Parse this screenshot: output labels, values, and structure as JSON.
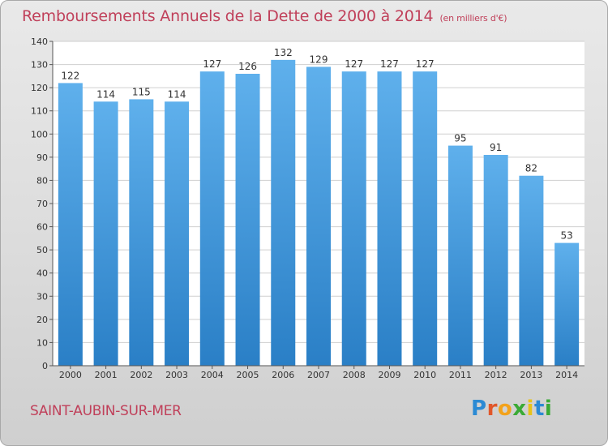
{
  "title": "Remboursements Annuels de la Dette de 2000 à 2014",
  "subtitle": "(en milliers d'€)",
  "commune": "SAINT-AUBIN-SUR-MER",
  "logo_text": "Proxiti",
  "colors": {
    "bar": "#3f97dc",
    "title": "#c0405a",
    "grid": "#cfcfcf",
    "plot_bg": "#ffffff"
  },
  "chart_data": {
    "type": "bar",
    "title": "Remboursements Annuels de la Dette de 2000 à 2014",
    "subtitle": "(en milliers d'€)",
    "xlabel": "",
    "ylabel": "",
    "categories": [
      "2000",
      "2001",
      "2002",
      "2003",
      "2004",
      "2005",
      "2006",
      "2007",
      "2008",
      "2009",
      "2010",
      "2011",
      "2012",
      "2013",
      "2014"
    ],
    "values": [
      122,
      114,
      115,
      114,
      127,
      126,
      132,
      129,
      127,
      127,
      127,
      95,
      91,
      82,
      53
    ],
    "ylim": [
      0,
      140
    ],
    "yticks": [
      0,
      10,
      20,
      30,
      40,
      50,
      60,
      70,
      80,
      90,
      100,
      110,
      120,
      130,
      140
    ],
    "grid": true,
    "data_labels": true
  }
}
